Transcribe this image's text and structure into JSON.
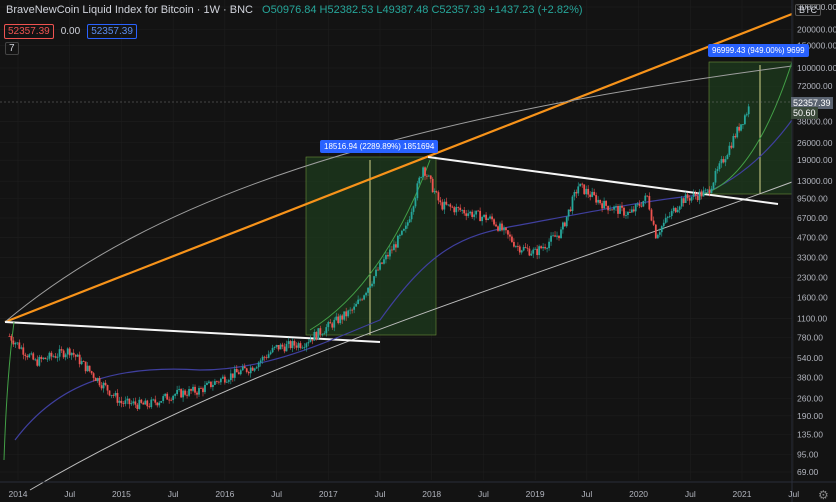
{
  "header": {
    "title": "BraveNewCoin Liquid Index for Bitcoin · 1W · BNC",
    "ohlc": "O50976.84 H52382.53 L49387.48 C52357.39 +1437.23 (+2.82%)"
  },
  "badges": {
    "sell": "52357.39",
    "spread": "0.00",
    "buy": "52357.39"
  },
  "indicator_toggle": "7",
  "currency": "BTC",
  "price_labels": {
    "last": "52357.39",
    "sub": "50.60"
  },
  "measures": [
    "18516.94 (2289.89%) 1851694",
    "96999.43 (949.00%) 9699"
  ],
  "chart_data": {
    "type": "candlestick",
    "y_scale": "log",
    "y_ticks": [
      "300000.00",
      "200000.00",
      "150000.00",
      "100000.00",
      "72000.00",
      "38000.00",
      "26000.00",
      "19000.00",
      "13000.00",
      "9500.00",
      "6700.00",
      "4700.00",
      "3300.00",
      "2300.00",
      "1600.00",
      "1100.00",
      "780.00",
      "540.00",
      "380.00",
      "260.00",
      "190.00",
      "135.00",
      "95.00",
      "69.00"
    ],
    "x_ticks": [
      "2014",
      "Jul",
      "2015",
      "Jul",
      "2016",
      "Jul",
      "2017",
      "Jul",
      "2018",
      "Jul",
      "2019",
      "Jul",
      "2020",
      "Jul",
      "2021",
      "Jul"
    ],
    "colors": {
      "up": "#26a69a",
      "down": "#ef5350",
      "trend_white": "#e0e0e0",
      "trend_orange": "#f7931a",
      "ma_purple": "#3f3f9e",
      "ma_green": "#43a047"
    },
    "weekly_close_path": [
      [
        "2013-12",
        800
      ],
      [
        "2014-03",
        500
      ],
      [
        "2014-07",
        620
      ],
      [
        "2014-10",
        380
      ],
      [
        "2015-01",
        240
      ],
      [
        "2015-04",
        230
      ],
      [
        "2015-07",
        280
      ],
      [
        "2015-10",
        300
      ],
      [
        "2016-01",
        380
      ],
      [
        "2016-04",
        450
      ],
      [
        "2016-07",
        650
      ],
      [
        "2016-10",
        700
      ],
      [
        "2017-01",
        950
      ],
      [
        "2017-04",
        1300
      ],
      [
        "2017-07",
        2800
      ],
      [
        "2017-10",
        5500
      ],
      [
        "2017-12",
        17000
      ],
      [
        "2018-02",
        8500
      ],
      [
        "2018-05",
        7500
      ],
      [
        "2018-08",
        6500
      ],
      [
        "2018-11",
        4000
      ],
      [
        "2019-01",
        3600
      ],
      [
        "2019-04",
        5200
      ],
      [
        "2019-06",
        12000
      ],
      [
        "2019-09",
        8500
      ],
      [
        "2019-12",
        7200
      ],
      [
        "2020-02",
        9800
      ],
      [
        "2020-03",
        5000
      ],
      [
        "2020-06",
        9300
      ],
      [
        "2020-09",
        10700
      ],
      [
        "2020-12",
        28000
      ],
      [
        "2021-02",
        52357
      ]
    ]
  }
}
